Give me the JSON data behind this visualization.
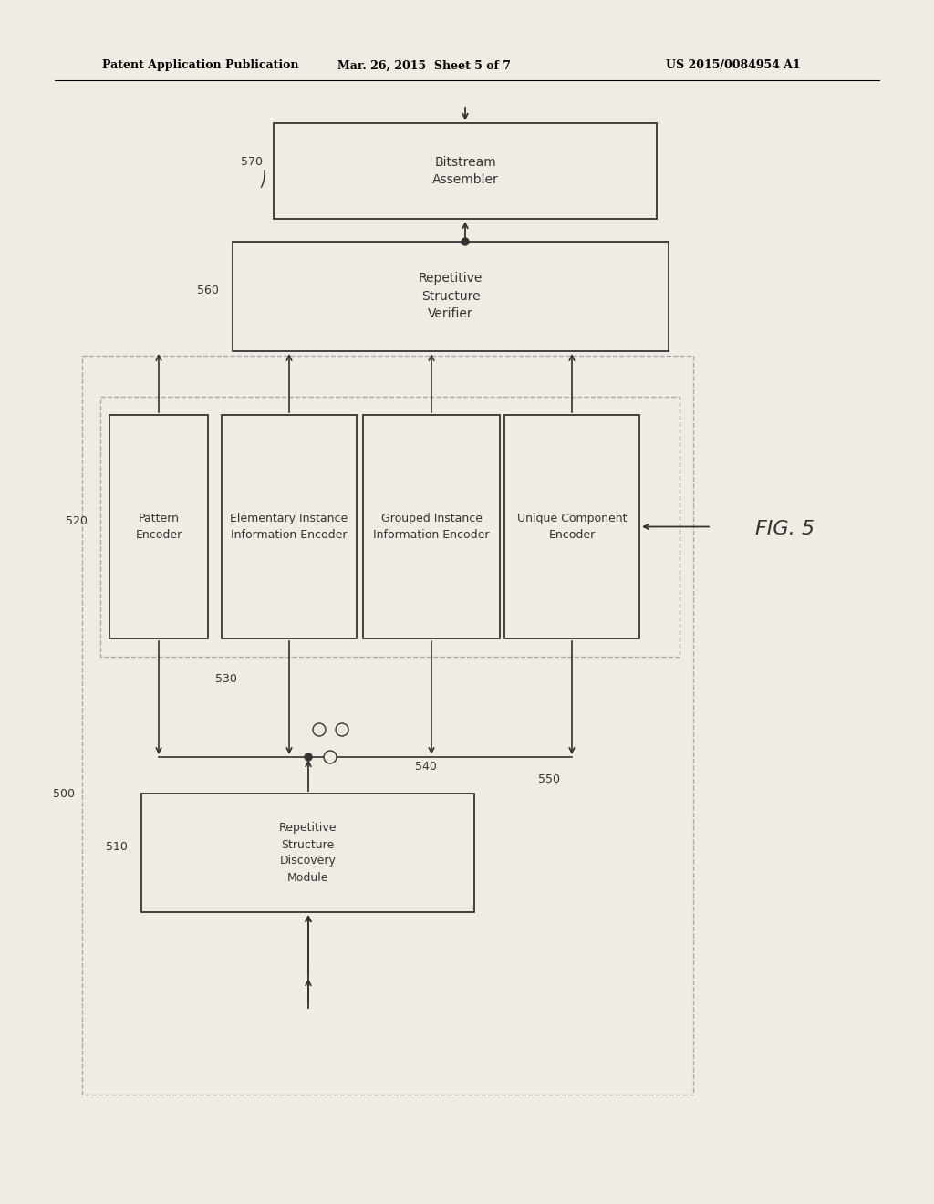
{
  "bg_color": "#f0ece4",
  "box_fill": "#f0ece4",
  "header_text": "Patent Application Publication",
  "header_date": "Mar. 26, 2015  Sheet 5 of 7",
  "header_patent": "US 2015/0084954 A1",
  "fig_label": "FIG. 5",
  "font_size_box": 9,
  "font_size_label": 9,
  "font_size_header": 9,
  "font_size_fig": 14
}
